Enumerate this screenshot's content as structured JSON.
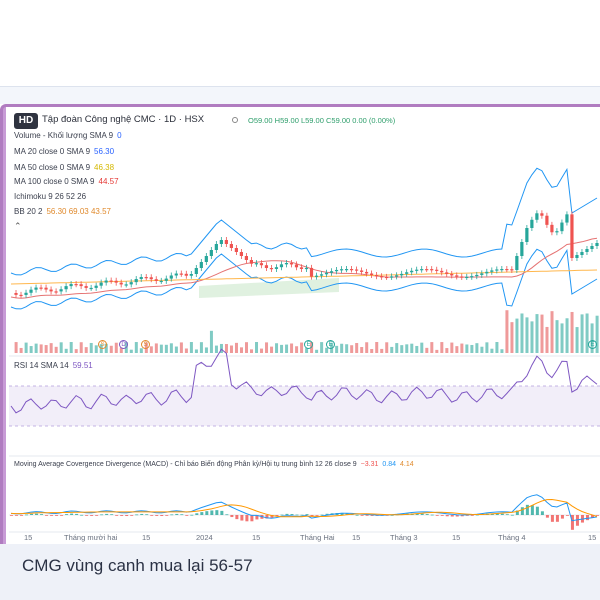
{
  "header": {
    "logo_text": "HD",
    "title": "Tập đoàn Công nghệ CMC · 1D · HSX",
    "ohlc": "O59.00 H59.00 L59.00 C59.00 0.00 (0.00%)"
  },
  "indicators": [
    {
      "label": "Volume - Khối lượng SMA 9",
      "value": "0",
      "color": "#2962ff"
    },
    {
      "label": "MA 20 close 0 SMA 9",
      "value": "56.30",
      "color": "#2962ff"
    },
    {
      "label": "MA 50 close 0 SMA 9",
      "value": "46.38",
      "color": "#e0c200"
    },
    {
      "label": "MA 100 close 0 SMA 9",
      "value": "44.57",
      "color": "#e53935"
    },
    {
      "label": "Ichimoku 9 26 52 26",
      "value": "",
      "color": "#555555"
    },
    {
      "label": "BB 20 2",
      "value": "56.30 69.03 43.57",
      "color": "#e08a2d"
    }
  ],
  "collapse_toggle": "⌃",
  "rsi": {
    "label": "RSI 14 SMA 14",
    "value": "59.51"
  },
  "macd": {
    "label": "Moving Average Covergence Divergence (MACD) - Chỉ báo Biến động Phân kỳ/Hội tụ trung bình 12 26 close 9",
    "values": [
      "−3.31",
      "0.84",
      "4.14"
    ]
  },
  "dividend_markers": [
    "S",
    "D",
    "S",
    "E",
    "E",
    "E"
  ],
  "x_axis": [
    "15",
    "Tháng mười hai",
    "15",
    "2024",
    "15",
    "Tháng Hai",
    "15",
    "Tháng 3",
    "15",
    "Tháng 4",
    "15"
  ],
  "caption": "CMG vùng canh mua lại 56-57",
  "colors": {
    "up": "#26a69a",
    "down": "#ef5350",
    "bb": "#2196f3",
    "rsi": "#7e57c2",
    "accent": "#b07cc0"
  }
}
